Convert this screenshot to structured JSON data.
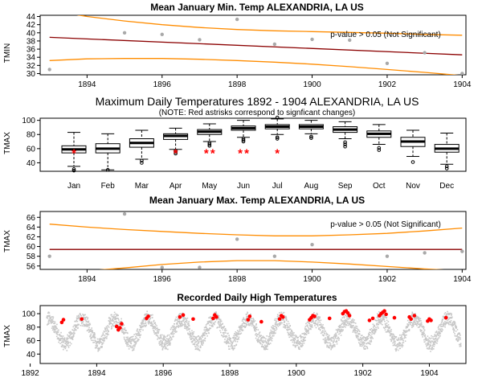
{
  "chart_data": [
    {
      "type": "line",
      "title": "Mean January Min. Temp ALEXANDRIA, LA US",
      "ylabel": "TMIN",
      "annotation": "p-value > 0.05 (Not Significant)",
      "xlim": [
        1892.75,
        1904.1
      ],
      "ylim": [
        29.7,
        44.3
      ],
      "xticks": [
        1894,
        1896,
        1898,
        1900,
        1902,
        1904
      ],
      "yticks": [
        30,
        32,
        34,
        36,
        38,
        40,
        42,
        44
      ],
      "points": {
        "x": [
          1893,
          1895,
          1896,
          1897,
          1898,
          1899,
          1900,
          1901,
          1902,
          1903,
          1904
        ],
        "y": [
          31,
          40,
          39.6,
          38.3,
          43.3,
          37.2,
          38.4,
          38.2,
          32.5,
          35.1,
          30
        ]
      },
      "series": [
        {
          "name": "trend",
          "color": "#8b0000",
          "x": [
            1893,
            1904
          ],
          "y": [
            38.9,
            34.6
          ]
        },
        {
          "name": "upper band",
          "color": "#ff8c00",
          "x": [
            1893,
            1894,
            1895,
            1896,
            1897,
            1898,
            1899,
            1900,
            1901,
            1902,
            1903,
            1904
          ],
          "y": [
            45.5,
            44.0,
            42.9,
            42.0,
            41.3,
            40.8,
            40.5,
            40.3,
            40.1,
            39.9,
            39.6,
            39.4
          ]
        },
        {
          "name": "lower band",
          "color": "#ff8c00",
          "x": [
            1893,
            1894,
            1895,
            1896,
            1897,
            1898,
            1899,
            1900,
            1901,
            1902,
            1903,
            1904
          ],
          "y": [
            33.2,
            33.6,
            33.7,
            33.7,
            33.5,
            33.2,
            32.8,
            32.3,
            31.7,
            31.0,
            30.3,
            29.5
          ]
        }
      ]
    },
    {
      "type": "box",
      "title": "Maximum Daily Temperatures 1892 - 1904 ALEXANDRIA, LA US",
      "subtitle": "(NOTE: Red astrisks correspond to signficant changes)",
      "ylabel": "TMAX",
      "ylim": [
        28,
        103
      ],
      "yticks": [
        40,
        60,
        80,
        100
      ],
      "categories": [
        "Jan",
        "Feb",
        "Mar",
        "Apr",
        "May",
        "Jun",
        "Jul",
        "Aug",
        "Sep",
        "Oct",
        "Nov",
        "Dec"
      ],
      "boxes": [
        {
          "min": 35,
          "q1": 54,
          "median": 59,
          "q3": 64,
          "max": 83,
          "outliers": [
            29,
            31
          ]
        },
        {
          "min": 30,
          "q1": 54,
          "median": 60,
          "q3": 67,
          "max": 81,
          "outliers": [
            30
          ]
        },
        {
          "min": 45,
          "q1": 62,
          "median": 68,
          "q3": 74,
          "max": 86,
          "outliers": [
            40,
            43
          ]
        },
        {
          "min": 59,
          "q1": 73,
          "median": 78,
          "q3": 81,
          "max": 89,
          "outliers": [
            53,
            55,
            57
          ]
        },
        {
          "min": 70,
          "q1": 80,
          "median": 84,
          "q3": 87,
          "max": 95,
          "outliers": [
            64,
            66,
            68
          ]
        },
        {
          "min": 76,
          "q1": 86,
          "median": 89,
          "q3": 92,
          "max": 100,
          "outliers": [
            70,
            72,
            74
          ]
        },
        {
          "min": 80,
          "q1": 88,
          "median": 91,
          "q3": 94,
          "max": 102,
          "outliers": [
            74,
            76,
            104
          ]
        },
        {
          "min": 81,
          "q1": 88,
          "median": 91,
          "q3": 94,
          "max": 100,
          "outliers": [
            75,
            77
          ]
        },
        {
          "min": 74,
          "q1": 83,
          "median": 87,
          "q3": 91,
          "max": 98,
          "outliers": [
            63,
            66,
            69
          ]
        },
        {
          "min": 66,
          "q1": 76,
          "median": 81,
          "q3": 85,
          "max": 94,
          "outliers": [
            58,
            61
          ]
        },
        {
          "min": 49,
          "q1": 63,
          "median": 70,
          "q3": 76,
          "max": 86,
          "outliers": [
            41
          ]
        },
        {
          "min": 38,
          "q1": 55,
          "median": 60,
          "q3": 66,
          "max": 82,
          "outliers": [
            32,
            35
          ]
        }
      ],
      "significant_markers": [
        {
          "month": "Jan",
          "count": 1,
          "y": 57
        },
        {
          "month": "Apr",
          "count": 1,
          "y": 57
        },
        {
          "month": "May",
          "count": 2,
          "y": 57
        },
        {
          "month": "Jun",
          "count": 2,
          "y": 57
        },
        {
          "month": "Jul",
          "count": 1,
          "y": 57
        }
      ]
    },
    {
      "type": "line",
      "title": "Mean January Max. Temp ALEXANDRIA, LA US",
      "ylabel": "TMAX",
      "annotation": "p-value > 0.05 (Not Significant)",
      "xlim": [
        1892.75,
        1904.1
      ],
      "ylim": [
        55.3,
        67.2
      ],
      "xticks": [
        1894,
        1896,
        1898,
        1900,
        1902,
        1904
      ],
      "yticks": [
        56,
        58,
        60,
        62,
        64,
        66
      ],
      "points": {
        "x": [
          1893,
          1895,
          1896,
          1897,
          1898,
          1899,
          1900,
          1902,
          1903,
          1904
        ],
        "y": [
          58.0,
          66.7,
          55.7,
          55.7,
          61.5,
          58.0,
          60.4,
          58.0,
          58.7,
          59.0
        ]
      },
      "series": [
        {
          "name": "trend",
          "color": "#8b0000",
          "x": [
            1893,
            1904
          ],
          "y": [
            59.4,
            59.4
          ]
        },
        {
          "name": "upper band",
          "color": "#ff8c00",
          "x": [
            1893,
            1894,
            1895,
            1896,
            1897,
            1898,
            1899,
            1900,
            1901,
            1902,
            1903,
            1904
          ],
          "y": [
            64.6,
            64.0,
            63.5,
            63.1,
            62.7,
            62.4,
            62.2,
            62.2,
            62.4,
            62.7,
            63.2,
            63.8
          ]
        },
        {
          "name": "lower band",
          "color": "#ff8c00",
          "x": [
            1893,
            1894,
            1895,
            1896,
            1897,
            1898,
            1899,
            1900,
            1901,
            1902,
            1903,
            1904
          ],
          "y": [
            54.3,
            55.0,
            55.6,
            56.3,
            56.8,
            57.1,
            57.1,
            56.8,
            56.4,
            55.9,
            55.4,
            55.0
          ]
        }
      ]
    },
    {
      "type": "scatter",
      "title": "Recorded Daily High Temperatures",
      "ylabel": "TMAX",
      "xlim": [
        1892.3,
        1905.1
      ],
      "ylim": [
        26,
        112
      ],
      "xticks": [
        1892,
        1894,
        1896,
        1898,
        1900,
        1902,
        1904
      ],
      "yticks": [
        40,
        60,
        80,
        100
      ],
      "data_range": [
        1892.5,
        1904.95
      ],
      "annual_cycle": {
        "mean": 74,
        "amplitude": 18,
        "noise": 10,
        "peak_fraction_of_year": 0.55,
        "color": "#c8c8c8"
      },
      "highlighted_extremes": {
        "color": "#ff0000",
        "x": [
          1892.95,
          1893.0,
          1893.55,
          1894.6,
          1894.65,
          1894.7,
          1894.75,
          1895.5,
          1895.55,
          1896.5,
          1896.6,
          1896.9,
          1897.5,
          1897.55,
          1897.6,
          1898.55,
          1898.6,
          1898.95,
          1899.5,
          1899.55,
          1899.6,
          1900.4,
          1900.45,
          1900.5,
          1900.55,
          1901.0,
          1901.4,
          1901.45,
          1901.5,
          1901.55,
          1901.6,
          1902.2,
          1902.3,
          1902.5,
          1902.55,
          1902.6,
          1902.65,
          1902.7,
          1902.95,
          1903.4,
          1903.45,
          1903.55,
          1903.95,
          1904.0,
          1904.05,
          1904.5
        ],
        "y": [
          87,
          91,
          92,
          81,
          76,
          79,
          85,
          93,
          96,
          95,
          98,
          92,
          93,
          98,
          95,
          91,
          96,
          88,
          92,
          97,
          95,
          91,
          94,
          97,
          96,
          93,
          100,
          103,
          104,
          101,
          97,
          90,
          93,
          97,
          100,
          102,
          104,
          99,
          94,
          95,
          92,
          97,
          89,
          92,
          90,
          94
        ]
      }
    }
  ]
}
